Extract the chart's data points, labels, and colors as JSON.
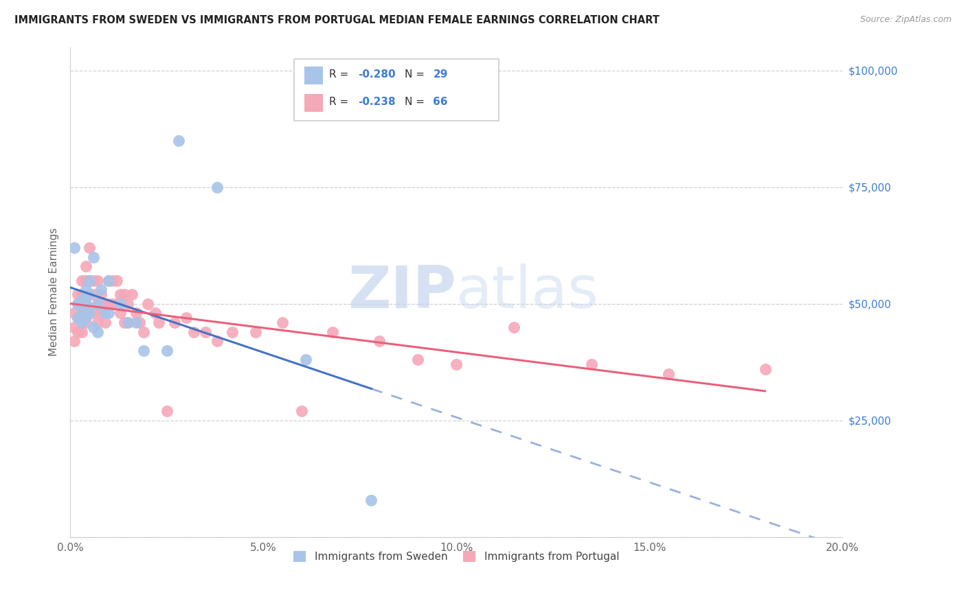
{
  "title": "IMMIGRANTS FROM SWEDEN VS IMMIGRANTS FROM PORTUGAL MEDIAN FEMALE EARNINGS CORRELATION CHART",
  "source": "Source: ZipAtlas.com",
  "ylabel": "Median Female Earnings",
  "xlabel_ticks": [
    "0.0%",
    "5.0%",
    "10.0%",
    "15.0%",
    "20.0%"
  ],
  "xlabel_vals": [
    0.0,
    0.05,
    0.1,
    0.15,
    0.2
  ],
  "ylabel_ticks": [
    0,
    25000,
    50000,
    75000,
    100000
  ],
  "ylabel_labels": [
    "",
    "$25,000",
    "$50,000",
    "$75,000",
    "$100,000"
  ],
  "xlim": [
    0,
    0.2
  ],
  "ylim": [
    0,
    105000
  ],
  "watermark_zip": "ZIP",
  "watermark_atlas": "atlas",
  "legend_sweden": "Immigrants from Sweden",
  "legend_portugal": "Immigrants from Portugal",
  "R_sweden": "-0.280",
  "N_sweden": "29",
  "R_portugal": "-0.238",
  "N_portugal": "66",
  "sweden_color": "#a8c4e8",
  "portugal_color": "#f5a8b8",
  "trendline_sweden_color": "#4472c4",
  "trendline_portugal_color": "#e8607a",
  "background_color": "#ffffff",
  "grid_color": "#d0d0d0",
  "tick_color": "#666666",
  "right_tick_color": "#3b7dd8",
  "sweden_x": [
    0.001,
    0.002,
    0.002,
    0.003,
    0.003,
    0.003,
    0.004,
    0.004,
    0.004,
    0.005,
    0.005,
    0.005,
    0.006,
    0.006,
    0.007,
    0.007,
    0.008,
    0.009,
    0.01,
    0.01,
    0.013,
    0.015,
    0.017,
    0.019,
    0.025,
    0.028,
    0.038,
    0.061,
    0.078
  ],
  "sweden_y": [
    62000,
    50000,
    47000,
    51000,
    49000,
    46000,
    53000,
    50000,
    47000,
    55000,
    52000,
    48000,
    60000,
    45000,
    50000,
    44000,
    53000,
    48000,
    55000,
    48000,
    50000,
    46000,
    46000,
    40000,
    40000,
    85000,
    75000,
    38000,
    8000
  ],
  "portugal_x": [
    0.001,
    0.001,
    0.001,
    0.002,
    0.002,
    0.002,
    0.002,
    0.003,
    0.003,
    0.003,
    0.003,
    0.004,
    0.004,
    0.004,
    0.004,
    0.005,
    0.005,
    0.005,
    0.005,
    0.006,
    0.006,
    0.006,
    0.007,
    0.007,
    0.007,
    0.008,
    0.008,
    0.009,
    0.009,
    0.01,
    0.01,
    0.011,
    0.011,
    0.012,
    0.012,
    0.013,
    0.013,
    0.014,
    0.014,
    0.015,
    0.015,
    0.016,
    0.017,
    0.018,
    0.019,
    0.02,
    0.022,
    0.023,
    0.025,
    0.027,
    0.03,
    0.032,
    0.035,
    0.038,
    0.042,
    0.048,
    0.055,
    0.06,
    0.068,
    0.08,
    0.09,
    0.1,
    0.115,
    0.135,
    0.155,
    0.18
  ],
  "portugal_y": [
    48000,
    45000,
    42000,
    52000,
    50000,
    47000,
    44000,
    55000,
    52000,
    48000,
    44000,
    58000,
    55000,
    50000,
    46000,
    62000,
    55000,
    52000,
    48000,
    55000,
    52000,
    48000,
    55000,
    50000,
    46000,
    52000,
    48000,
    50000,
    46000,
    55000,
    50000,
    55000,
    50000,
    55000,
    50000,
    52000,
    48000,
    52000,
    46000,
    50000,
    46000,
    52000,
    48000,
    46000,
    44000,
    50000,
    48000,
    46000,
    27000,
    46000,
    47000,
    44000,
    44000,
    42000,
    44000,
    44000,
    46000,
    27000,
    44000,
    42000,
    38000,
    37000,
    45000,
    37000,
    35000,
    36000
  ]
}
